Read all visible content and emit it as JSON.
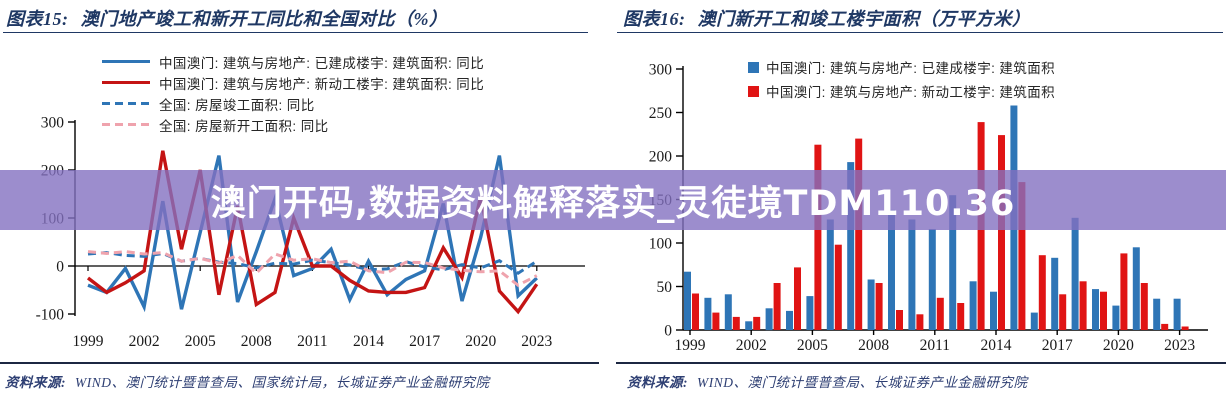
{
  "banner": {
    "text": "澳门开码,数据资料解释落实_灵徒境TDM110.36",
    "bg_color": "#8371C0",
    "text_color": "#FFFFFF"
  },
  "theme": {
    "title_color": "#1F3864",
    "axis_color": "#000000",
    "source_color": "#2E3F73",
    "macau_blue": "#2E75B6",
    "macau_red": "#C41414",
    "bar_blue": "#2E75B6",
    "bar_red": "#E01414",
    "national_pink": "#EFA3AD"
  },
  "panels": {
    "left": {
      "fig_label": "图表15:",
      "title": "澳门地产竣工和新开工同比和全国对比（%）",
      "source_label": "资料来源:",
      "source": "WIND、澳门统计暨普查局、国家统计局，长城证券产业金融研究院"
    },
    "right": {
      "fig_label": "图表16:",
      "title": "澳门新开工和竣工楼宇面积（万平方米）",
      "source_label": "资料来源:",
      "source": "WIND、澳门统计暨普查局、长城证券产业金融研究院"
    }
  },
  "chart_data": [
    {
      "type": "line",
      "title": "澳门地产竣工和新开工同比和全国对比（%）",
      "xlabel": "",
      "ylabel": "",
      "x": [
        1999,
        2000,
        2001,
        2002,
        2003,
        2004,
        2005,
        2006,
        2007,
        2008,
        2009,
        2010,
        2011,
        2012,
        2013,
        2014,
        2015,
        2016,
        2017,
        2018,
        2019,
        2020,
        2021,
        2022,
        2023
      ],
      "x_tick_labels": [
        "1999",
        "2002",
        "2005",
        "2008",
        "2011",
        "2014",
        "2017",
        "2020",
        "2023"
      ],
      "ylim": [
        -100,
        300
      ],
      "yticks": [
        300,
        200,
        100,
        0,
        -100
      ],
      "grid": false,
      "legend_position": "top-left",
      "series": [
        {
          "name": "中国澳门: 建筑与房地产: 已建成楼宇: 建筑面积: 同比",
          "color": "#2E75B6",
          "style": "solid",
          "values": [
            -40,
            -55,
            -5,
            -85,
            135,
            -90,
            70,
            230,
            -75,
            30,
            140,
            -20,
            -5,
            35,
            -70,
            10,
            -60,
            -28,
            -10,
            130,
            -73,
            60,
            230,
            -62,
            -25
          ]
        },
        {
          "name": "中国澳门: 建筑与房地产: 新动工楼宇: 建筑面积: 同比",
          "color": "#C41414",
          "style": "solid",
          "values": [
            -25,
            -55,
            -35,
            -10,
            240,
            35,
            200,
            -60,
            125,
            -80,
            -55,
            100,
            0,
            0,
            -30,
            -52,
            -55,
            -55,
            -45,
            38,
            -24,
            145,
            -52,
            -95,
            -38
          ]
        },
        {
          "name": "全国: 房屋竣工面积: 同比",
          "color": "#2E75B6",
          "style": "dashed",
          "values": [
            25,
            28,
            22,
            20,
            26,
            10,
            16,
            8,
            5,
            -4,
            6,
            4,
            12,
            7,
            2,
            -8,
            -6,
            9,
            -2,
            -8,
            3,
            -4,
            11,
            -15,
            10
          ]
        },
        {
          "name": "全国: 房屋新开工面积: 同比",
          "color": "#EFA3AD",
          "style": "dashed",
          "values": [
            30,
            26,
            30,
            25,
            28,
            10,
            16,
            6,
            22,
            -15,
            25,
            12,
            15,
            7,
            10,
            -10,
            -14,
            8,
            7,
            -4,
            -9,
            -12,
            -10,
            -40,
            -20
          ]
        }
      ]
    },
    {
      "type": "bar",
      "title": "澳门新开工和竣工楼宇面积（万平方米）",
      "xlabel": "",
      "ylabel": "",
      "categories": [
        1999,
        2000,
        2001,
        2002,
        2003,
        2004,
        2005,
        2006,
        2007,
        2008,
        2009,
        2010,
        2011,
        2012,
        2013,
        2014,
        2015,
        2016,
        2017,
        2018,
        2019,
        2020,
        2021,
        2022,
        2023
      ],
      "x_tick_labels": [
        "1999",
        "2002",
        "2005",
        "2008",
        "2011",
        "2014",
        "2017",
        "2020",
        "2023"
      ],
      "ylim": [
        0,
        300
      ],
      "yticks": [
        0,
        50,
        100,
        150,
        200,
        250,
        300
      ],
      "grid": false,
      "legend_position": "top",
      "series": [
        {
          "name": "中国澳门: 建筑与房地产: 已建成楼宇: 建筑面积",
          "color": "#2E75B6",
          "values": [
            67,
            37,
            41,
            10,
            25,
            22,
            39,
            127,
            193,
            58,
            138,
            127,
            116,
            155,
            56,
            44,
            258,
            20,
            83,
            129,
            47,
            28,
            95,
            36,
            36
          ]
        },
        {
          "name": "中国澳门: 建筑与房地产: 新动工楼宇: 建筑面积",
          "color": "#E01414",
          "values": [
            42,
            20,
            15,
            15,
            54,
            72,
            213,
            98,
            220,
            54,
            23,
            18,
            37,
            31,
            239,
            224,
            170,
            86,
            41,
            56,
            44,
            88,
            54,
            7,
            4
          ]
        }
      ]
    }
  ]
}
